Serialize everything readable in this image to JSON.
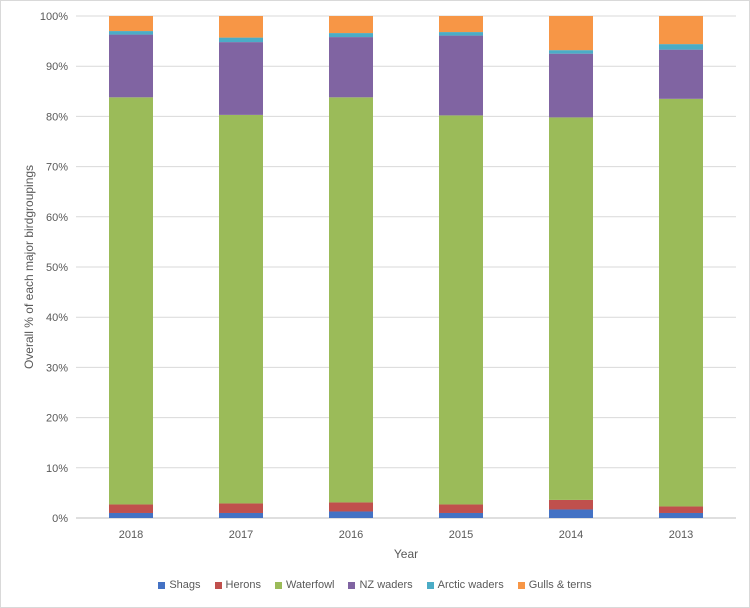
{
  "chart_data": {
    "type": "bar",
    "stacked": true,
    "percent_stacked": true,
    "categories": [
      "2018",
      "2017",
      "2016",
      "2015",
      "2014",
      "2013"
    ],
    "xlabel": "Year",
    "ylabel": "Overall % of each major birdgroupings",
    "ylim": [
      0,
      100
    ],
    "yticks": [
      "0%",
      "10%",
      "20%",
      "30%",
      "40%",
      "50%",
      "60%",
      "70%",
      "80%",
      "90%",
      "100%"
    ],
    "grid": true,
    "legend_position": "bottom",
    "series": [
      {
        "name": "Shags",
        "color": "#4472c4",
        "values": [
          1.0,
          1.0,
          1.3,
          1.0,
          1.7,
          1.0
        ]
      },
      {
        "name": "Herons",
        "color": "#c0504d",
        "values": [
          1.7,
          1.9,
          1.8,
          1.7,
          1.9,
          1.3
        ]
      },
      {
        "name": "Waterfowl",
        "color": "#9bbb59",
        "values": [
          81.1,
          77.4,
          80.7,
          77.5,
          76.2,
          81.2
        ]
      },
      {
        "name": "NZ waders",
        "color": "#8064a2",
        "values": [
          12.5,
          14.5,
          12.0,
          15.9,
          12.7,
          9.8
        ]
      },
      {
        "name": "Arctic waders",
        "color": "#4bacc6",
        "values": [
          0.7,
          0.9,
          0.8,
          0.7,
          0.7,
          1.1
        ]
      },
      {
        "name": "Gulls & terns",
        "color": "#f79646",
        "values": [
          3.0,
          4.3,
          3.4,
          3.2,
          6.8,
          5.6
        ]
      }
    ]
  }
}
